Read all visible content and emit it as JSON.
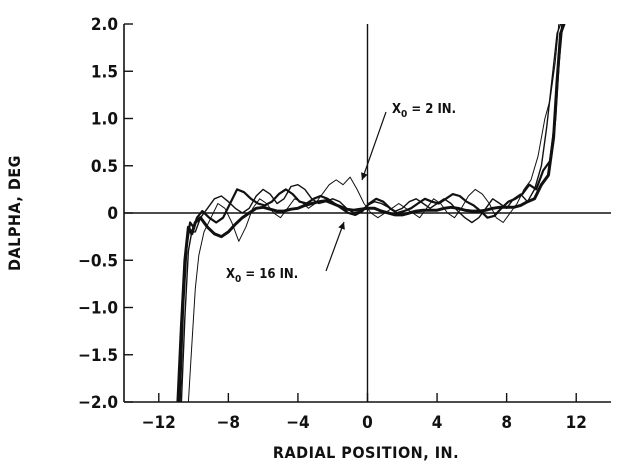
{
  "chart_data": {
    "type": "line",
    "title": "",
    "xlabel": "RADIAL POSITION, IN.",
    "ylabel": "DALPHA, DEG",
    "xlim": [
      -14,
      14
    ],
    "ylim": [
      -2.0,
      2.0
    ],
    "xticks": [
      -12,
      -8,
      -4,
      0,
      4,
      8,
      12
    ],
    "xtick_labels": [
      "−12",
      "−8",
      "−4",
      "0",
      "4",
      "8",
      "12"
    ],
    "yticks": [
      2.0,
      1.5,
      1.0,
      0.5,
      0,
      -0.5,
      -1.0,
      -1.5,
      -2.0
    ],
    "ytick_labels": [
      "2.0",
      "1.5",
      "1.0",
      "0.5",
      "0",
      "−0.5",
      "−1.0",
      "−1.5",
      "−2.0"
    ],
    "grid": false,
    "legend": "none",
    "annotations": [
      {
        "subscript_prefix": "X",
        "subscript": "0",
        "text": " = 2 IN.",
        "points_to": [
          -0.6,
          0.32
        ]
      },
      {
        "subscript_prefix": "X",
        "subscript": "0",
        "text": " = 16 IN.",
        "points_to": [
          -1.2,
          -0.07
        ]
      }
    ],
    "series": [
      {
        "stroke": 3.0,
        "x": [
          -10.9,
          -10.7,
          -10.5,
          -10.3,
          -10.1,
          -9.9,
          -9.6,
          -9.2,
          -8.8,
          -8.4,
          -8.0,
          -7.6,
          -7.2,
          -6.8,
          -6.4,
          -6.0,
          -5.6,
          -5.2,
          -4.8,
          -4.4,
          -4.0,
          -3.6,
          -3.2,
          -2.8,
          -2.4,
          -2.0,
          -1.6,
          -1.2,
          -0.8,
          -0.4,
          0.0,
          0.4,
          0.8,
          1.2,
          1.6,
          2.0,
          2.4,
          2.8,
          3.2,
          3.6,
          4.0,
          4.4,
          4.8,
          5.2,
          5.6,
          6.0,
          6.4,
          6.8,
          7.2,
          7.6,
          8.0,
          8.4,
          8.8,
          9.2,
          9.6,
          10.0,
          10.4,
          10.7,
          10.9,
          11.1,
          11.3
        ],
        "y": [
          -2.0,
          -1.2,
          -0.5,
          -0.15,
          -0.22,
          -0.1,
          -0.05,
          -0.15,
          -0.22,
          -0.25,
          -0.2,
          -0.12,
          -0.05,
          0.0,
          0.05,
          0.06,
          0.04,
          0.02,
          0.02,
          0.04,
          0.05,
          0.08,
          0.1,
          0.12,
          0.13,
          0.1,
          0.07,
          0.04,
          0.03,
          0.04,
          0.05,
          0.05,
          0.02,
          0.0,
          -0.02,
          -0.02,
          0.0,
          0.02,
          0.03,
          0.03,
          0.03,
          0.05,
          0.06,
          0.05,
          0.03,
          0.02,
          0.02,
          0.03,
          0.05,
          0.06,
          0.06,
          0.06,
          0.08,
          0.12,
          0.15,
          0.3,
          0.4,
          0.8,
          1.4,
          1.9,
          2.0
        ]
      },
      {
        "stroke": 2.2,
        "x": [
          -10.8,
          -10.6,
          -10.4,
          -10.2,
          -10.0,
          -9.8,
          -9.5,
          -9.1,
          -8.7,
          -8.3,
          -7.9,
          -7.5,
          -7.1,
          -6.7,
          -6.3,
          -5.9,
          -5.5,
          -5.1,
          -4.7,
          -4.3,
          -3.9,
          -3.5,
          -3.1,
          -2.7,
          -2.3,
          -1.9,
          -1.5,
          -1.1,
          -0.7,
          -0.3,
          0.1,
          0.5,
          0.9,
          1.3,
          1.7,
          2.1,
          2.5,
          2.9,
          3.3,
          3.7,
          4.1,
          4.5,
          4.9,
          5.3,
          5.7,
          6.1,
          6.5,
          6.9,
          7.3,
          7.7,
          8.1,
          8.5,
          8.9,
          9.3,
          9.7,
          10.1,
          10.5,
          10.8,
          11.0,
          11.2
        ],
        "y": [
          -2.0,
          -1.0,
          -0.35,
          -0.1,
          -0.15,
          -0.05,
          0.02,
          -0.05,
          -0.1,
          -0.05,
          0.1,
          0.25,
          0.22,
          0.15,
          0.1,
          0.08,
          0.12,
          0.2,
          0.25,
          0.2,
          0.12,
          0.1,
          0.15,
          0.18,
          0.15,
          0.1,
          0.05,
          0.0,
          -0.02,
          0.02,
          0.1,
          0.15,
          0.12,
          0.05,
          0.0,
          0.02,
          0.05,
          0.1,
          0.15,
          0.12,
          0.1,
          0.15,
          0.2,
          0.18,
          0.12,
          0.08,
          0.02,
          -0.05,
          -0.03,
          0.05,
          0.12,
          0.15,
          0.2,
          0.3,
          0.25,
          0.45,
          0.55,
          1.0,
          1.6,
          2.0
        ]
      },
      {
        "stroke": 1.4,
        "x": [
          -10.7,
          -10.5,
          -10.3,
          -10.1,
          -9.9,
          -9.6,
          -9.2,
          -8.8,
          -8.4,
          -8.0,
          -7.6,
          -7.2,
          -6.8,
          -6.4,
          -6.0,
          -5.6,
          -5.2,
          -4.8,
          -4.4,
          -4.0,
          -3.6,
          -3.2,
          -2.8,
          -2.4,
          -2.0,
          -1.6,
          -1.2,
          -0.8,
          -0.4,
          0.0,
          0.4,
          0.8,
          1.2,
          1.6,
          2.0,
          2.4,
          2.8,
          3.2,
          3.6,
          4.0,
          4.4,
          4.8,
          5.2,
          5.6,
          6.0,
          6.4,
          6.8,
          7.2,
          7.6,
          8.0,
          8.4,
          8.8,
          9.2,
          9.6,
          10.0,
          10.3,
          10.6,
          10.9,
          11.1
        ],
        "y": [
          -2.0,
          -1.1,
          -0.4,
          -0.2,
          -0.2,
          -0.05,
          0.05,
          0.15,
          0.18,
          0.12,
          0.05,
          0.0,
          0.05,
          0.18,
          0.25,
          0.2,
          0.1,
          0.15,
          0.28,
          0.3,
          0.25,
          0.15,
          0.1,
          0.12,
          0.15,
          0.12,
          0.05,
          0.0,
          0.02,
          0.08,
          0.12,
          0.1,
          0.06,
          0.02,
          0.05,
          0.12,
          0.15,
          0.1,
          0.05,
          0.1,
          0.15,
          0.1,
          0.02,
          -0.05,
          -0.1,
          -0.05,
          0.05,
          0.15,
          0.1,
          0.05,
          0.15,
          0.2,
          0.12,
          0.25,
          0.5,
          0.9,
          1.4,
          1.9,
          2.0
        ]
      },
      {
        "stroke": 1.0,
        "x": [
          -10.3,
          -10.1,
          -9.9,
          -9.7,
          -9.4,
          -9.0,
          -8.6,
          -8.2,
          -7.8,
          -7.4,
          -7.0,
          -6.6,
          -6.2,
          -5.8,
          -5.4,
          -5.0,
          -4.6,
          -4.2,
          -3.8,
          -3.4,
          -3.0,
          -2.6,
          -2.2,
          -1.8,
          -1.4,
          -1.0,
          -0.6,
          -0.2,
          0.2,
          0.6,
          1.0,
          1.4,
          1.8,
          2.2,
          2.6,
          3.0,
          3.4,
          3.8,
          4.2,
          4.6,
          5.0,
          5.4,
          5.8,
          6.2,
          6.6,
          7.0,
          7.4,
          7.8,
          8.2,
          8.6,
          9.0,
          9.4,
          9.8,
          10.2,
          10.5,
          10.8,
          11.0
        ],
        "y": [
          -2.0,
          -1.4,
          -0.8,
          -0.45,
          -0.2,
          -0.05,
          0.1,
          0.05,
          -0.1,
          -0.3,
          -0.15,
          0.05,
          0.15,
          0.1,
          0.0,
          -0.05,
          0.05,
          0.15,
          0.12,
          0.05,
          0.1,
          0.2,
          0.3,
          0.35,
          0.3,
          0.38,
          0.25,
          0.1,
          0.0,
          -0.05,
          0.0,
          0.05,
          0.1,
          0.05,
          0.0,
          -0.05,
          0.05,
          0.15,
          0.1,
          0.0,
          -0.05,
          0.05,
          0.18,
          0.25,
          0.2,
          0.1,
          -0.05,
          -0.1,
          0.0,
          0.1,
          0.25,
          0.35,
          0.6,
          1.0,
          1.2,
          1.6,
          2.0
        ]
      }
    ]
  }
}
